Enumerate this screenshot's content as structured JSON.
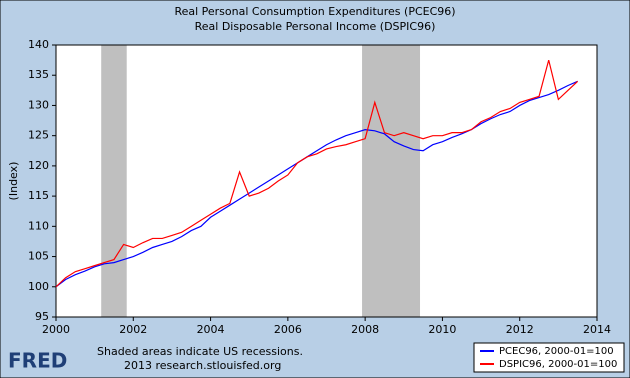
{
  "chart_data": {
    "type": "line",
    "title": "Real Personal Consumption Expenditures (PCEC96)",
    "subtitle": "Real Disposable Personal Income (DSPIC96)",
    "y_label": "(Index)",
    "x": [
      2000,
      2000.25,
      2000.5,
      2000.75,
      2001,
      2001.25,
      2001.5,
      2001.75,
      2002,
      2002.25,
      2002.5,
      2002.75,
      2003,
      2003.25,
      2003.5,
      2003.75,
      2004,
      2004.25,
      2004.5,
      2004.75,
      2005,
      2005.25,
      2005.5,
      2005.75,
      2006,
      2006.25,
      2006.5,
      2006.75,
      2007,
      2007.25,
      2007.5,
      2007.75,
      2008,
      2008.25,
      2008.5,
      2008.75,
      2009,
      2009.25,
      2009.5,
      2009.75,
      2010,
      2010.25,
      2010.5,
      2010.75,
      2011,
      2011.25,
      2011.5,
      2011.75,
      2012,
      2012.25,
      2012.5,
      2012.75,
      2013,
      2013.25,
      2013.5
    ],
    "series": [
      {
        "name": "PCEC96, 2000-01=100",
        "color": "#0000ff",
        "values": [
          100,
          101.2,
          102,
          102.6,
          103.3,
          103.8,
          104,
          104.5,
          105,
          105.7,
          106.5,
          107,
          107.5,
          108.3,
          109.3,
          110,
          111.5,
          112.5,
          113.5,
          114.5,
          115.5,
          116.5,
          117.5,
          118.5,
          119.5,
          120.5,
          121.5,
          122.5,
          123.5,
          124.3,
          125,
          125.5,
          126,
          125.8,
          125.3,
          124,
          123.3,
          122.7,
          122.5,
          123.5,
          124,
          124.7,
          125.3,
          126,
          127,
          127.8,
          128.5,
          129,
          130,
          130.8,
          131.3,
          131.8,
          132.5,
          133.3,
          134
        ]
      },
      {
        "name": "DSPIC96, 2000-01=100",
        "color": "#ff0000",
        "values": [
          100,
          101.5,
          102.5,
          103,
          103.5,
          104,
          104.5,
          107,
          106.5,
          107.3,
          108,
          108,
          108.5,
          109,
          110,
          111,
          112,
          113,
          113.8,
          119,
          115,
          115.5,
          116.3,
          117.5,
          118.5,
          120.5,
          121.5,
          122,
          122.8,
          123.2,
          123.5,
          124,
          124.5,
          130.5,
          125.5,
          125,
          125.5,
          125,
          124.5,
          125,
          125,
          125.5,
          125.5,
          126,
          127.3,
          128,
          129,
          129.5,
          130.5,
          131,
          131.5,
          137.5,
          131,
          132.5,
          134
        ]
      }
    ],
    "recessions": [
      [
        2001.17,
        2001.83
      ],
      [
        2007.92,
        2009.42
      ]
    ],
    "recession_color": "#bfbfbf",
    "xlim": [
      2000,
      2014
    ],
    "xticks": [
      2000,
      2002,
      2004,
      2006,
      2008,
      2010,
      2012,
      2014
    ],
    "ylim": [
      95,
      140
    ],
    "yticks": [
      95,
      100,
      105,
      110,
      115,
      120,
      125,
      130,
      135,
      140
    ]
  },
  "footer": {
    "logo": "FRED",
    "note": "Shaded areas indicate US recessions.",
    "source": "2013 research.stlouisfed.org"
  }
}
